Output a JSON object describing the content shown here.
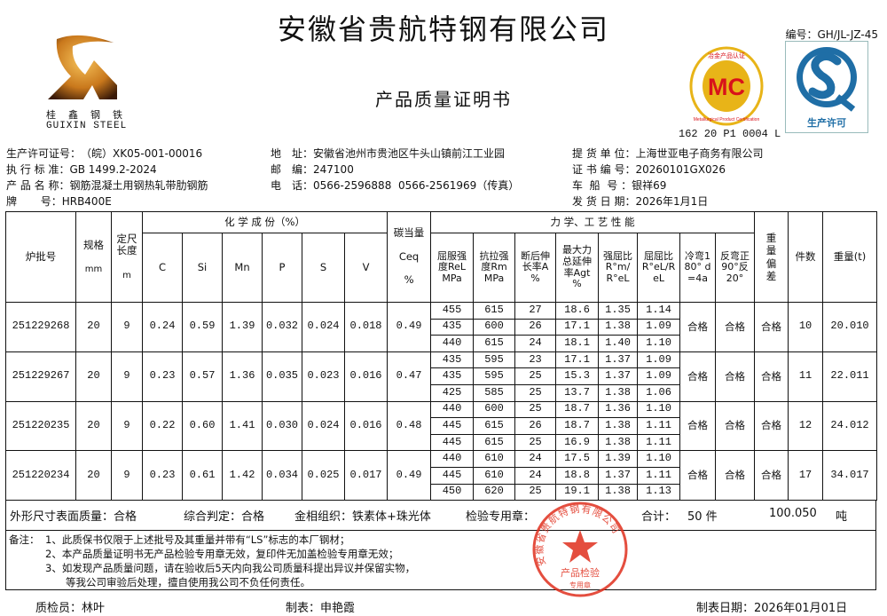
{
  "header": {
    "company": "安徽省贵航特钢有限公司",
    "doc_title": "产品质量证明书",
    "doc_no": "编号：GH/JL-JZ-45",
    "mc_code": "162 20 P1 0004 L",
    "logo_cn": "桂鑫钢铁",
    "logo_en": "GUIXIN STEEL",
    "mc_logo_text": "MC",
    "mc_ring_top": "冶金产品认证",
    "mc_ring_bottom": "Metallurgical Product Certification",
    "qs_text": "生产许可",
    "colors": {
      "mc_gold": "#e8b418",
      "mc_red": "#d8121a",
      "qs_blue": "#1f6ea6",
      "stamp_red": "#e0301e"
    }
  },
  "info": {
    "left": [
      {
        "label": "生产许可证号：",
        "value": "（皖）XK05-001-00016"
      },
      {
        "label": "执 行 标 准：",
        "value": "GB 1499.2-2024"
      },
      {
        "label": "产 品 名 称：",
        "value": "钢筋混凝土用钢热轧带肋钢筋"
      },
      {
        "label": "牌       号：",
        "value": "HRB400E"
      }
    ],
    "middle": [
      {
        "label": "地　址：",
        "value": "安徽省池州市贵池区牛头山镇前江工业园"
      },
      {
        "label": "邮　编：",
        "value": "247100"
      },
      {
        "label": "电　话：",
        "value": "0566-2596888  0566-2561969（传真）"
      }
    ],
    "right": [
      {
        "label": "提 货 单 位：",
        "value": "上海世亚电子商务有限公司"
      },
      {
        "label": "证 书 编 号：",
        "value": "20260101GX026"
      },
      {
        "label": "车  船  号 ：",
        "value": "银祥69"
      },
      {
        "label": "发 货 日 期：",
        "value": "2026年1月1日"
      }
    ]
  },
  "table": {
    "headers": {
      "batch": "炉批号",
      "spec": "规格",
      "spec_unit": "mm",
      "length": "定尺长度",
      "length_unit": "m",
      "chem_group": "化 学 成 份（%）",
      "chem": [
        "C",
        "Si",
        "Mn",
        "P",
        "S",
        "V"
      ],
      "ceq": "碳当量",
      "ceq_sub": "Ceq",
      "ceq_unit": "%",
      "mech_group": "力 学、工 艺 性 能",
      "mech": [
        "屈服强度ReL MPa",
        "抗拉强度Rm MPa",
        "断后伸长率A %",
        "最大力总延伸率Agt %",
        "强屈比R°m/R°eL",
        "屈屈比R°eL/ReL",
        "冷弯180° d=4a",
        "反弯正90°反20°"
      ],
      "weight_dev": "重量偏差",
      "pieces": "件数",
      "weight": "重量(t)"
    },
    "batches": [
      {
        "batch": "251229268",
        "spec": "20",
        "length": "9",
        "chem": [
          "0.24",
          "0.59",
          "1.39",
          "0.032",
          "0.024",
          "0.018"
        ],
        "ceq": "0.49",
        "mech": [
          [
            "455",
            "615",
            "27",
            "18.6",
            "1.35",
            "1.14"
          ],
          [
            "435",
            "600",
            "26",
            "17.1",
            "1.38",
            "1.09"
          ],
          [
            "440",
            "615",
            "24",
            "18.1",
            "1.40",
            "1.10"
          ]
        ],
        "cold_bend": "合格",
        "rebend": "合格",
        "weight_dev": "合格",
        "pieces": "10",
        "weight": "20.010"
      },
      {
        "batch": "251229267",
        "spec": "20",
        "length": "9",
        "chem": [
          "0.23",
          "0.57",
          "1.36",
          "0.035",
          "0.023",
          "0.016"
        ],
        "ceq": "0.47",
        "mech": [
          [
            "435",
            "595",
            "23",
            "17.1",
            "1.37",
            "1.09"
          ],
          [
            "435",
            "595",
            "25",
            "15.3",
            "1.37",
            "1.09"
          ],
          [
            "425",
            "585",
            "25",
            "13.7",
            "1.38",
            "1.06"
          ]
        ],
        "cold_bend": "合格",
        "rebend": "合格",
        "weight_dev": "合格",
        "pieces": "11",
        "weight": "22.011"
      },
      {
        "batch": "251220235",
        "spec": "20",
        "length": "9",
        "chem": [
          "0.22",
          "0.60",
          "1.41",
          "0.030",
          "0.024",
          "0.016"
        ],
        "ceq": "0.48",
        "mech": [
          [
            "440",
            "600",
            "25",
            "18.7",
            "1.36",
            "1.10"
          ],
          [
            "445",
            "615",
            "26",
            "18.7",
            "1.38",
            "1.11"
          ],
          [
            "445",
            "615",
            "25",
            "16.9",
            "1.38",
            "1.11"
          ]
        ],
        "cold_bend": "合格",
        "rebend": "合格",
        "weight_dev": "合格",
        "pieces": "12",
        "weight": "24.012"
      },
      {
        "batch": "251220234",
        "spec": "20",
        "length": "9",
        "chem": [
          "0.23",
          "0.61",
          "1.42",
          "0.034",
          "0.025",
          "0.017"
        ],
        "ceq": "0.49",
        "mech": [
          [
            "440",
            "610",
            "24",
            "17.5",
            "1.39",
            "1.10"
          ],
          [
            "445",
            "610",
            "24",
            "18.8",
            "1.37",
            "1.11"
          ],
          [
            "450",
            "620",
            "25",
            "19.1",
            "1.38",
            "1.13"
          ]
        ],
        "cold_bend": "合格",
        "rebend": "合格",
        "weight_dev": "合格",
        "pieces": "17",
        "weight": "34.017"
      }
    ]
  },
  "summary": {
    "appearance": "外形尺寸表面质量：合格",
    "judgement": "综合判定：合格",
    "metallography": "金相组织：铁素体+珠光体",
    "stamp_label": "检验专用章：",
    "total_label": "合计：",
    "total_pieces": "50 件",
    "total_weight": "100.050",
    "weight_unit": "吨"
  },
  "notes": {
    "label": "备注：",
    "items": [
      "1、此质保书仅限于上述批号及其重量并带有“LS”标志的本厂钢材；",
      "2、本产品质量证明书无产品检验专用章无效，复印件无加盖检验专用章无效；",
      "3、如发现产品质量问题，请在验收后5天内向我公司质量科提出异议并保留实物，",
      "等我公司审验后处理，擅自使用我公司不负任何责任。"
    ]
  },
  "stamp": {
    "ring": "安徽省贵航特钢有限公司",
    "line1": "产品检验",
    "line2": "专用章"
  },
  "footer": {
    "inspector": "质检员：林叶",
    "preparer": "制表：申艳霞",
    "date": "制表日期：2026年01月01日"
  }
}
